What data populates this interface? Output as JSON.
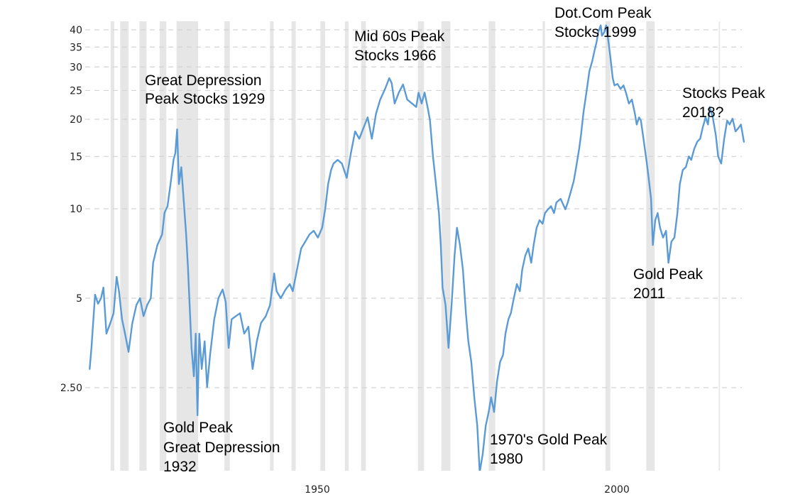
{
  "chart_data": {
    "type": "line",
    "title": "",
    "xlabel": "",
    "ylabel": "",
    "y_scale": "log",
    "ylim": [
      1.3,
      44
    ],
    "xlim": [
      1911,
      2024
    ],
    "grid": "horizontal-dashed",
    "line_color": "#5b9bd5",
    "band_color": "#e6e6e6",
    "y_ticks": [
      {
        "value": 40,
        "label": "40"
      },
      {
        "value": 35,
        "label": "35"
      },
      {
        "value": 30,
        "label": "30"
      },
      {
        "value": 25,
        "label": "25"
      },
      {
        "value": 20,
        "label": "20"
      },
      {
        "value": 15,
        "label": "15"
      },
      {
        "value": 10,
        "label": "10"
      },
      {
        "value": 5,
        "label": "5"
      },
      {
        "value": 2.5,
        "label": "2.50"
      }
    ],
    "x_ticks": [
      {
        "value": 1950,
        "label": "1950"
      },
      {
        "value": 2000,
        "label": "2000"
      }
    ],
    "recession_bands": [
      [
        1915.5,
        1916.1
      ],
      [
        1917.1,
        1918.5
      ],
      [
        1920.3,
        1921.5
      ],
      [
        1923.7,
        1924.8
      ],
      [
        1926.5,
        1930.1
      ],
      [
        1934.5,
        1935.4
      ],
      [
        1942.1,
        1942.7
      ],
      [
        1945.7,
        1946.4
      ],
      [
        1950.5,
        1951.3
      ],
      [
        1954.6,
        1955.2
      ],
      [
        1957.3,
        1958.1
      ],
      [
        1966.8,
        1967.8
      ],
      [
        1970.7,
        1972.2
      ],
      [
        1978.6,
        1979.7
      ],
      [
        1987.6,
        1988.0
      ],
      [
        1998.1,
        1998.9
      ],
      [
        2004.9,
        2006.3
      ],
      [
        2017.0,
        2017.2
      ]
    ],
    "series": [
      {
        "name": "Ratio",
        "x": [
          1912.0,
          1912.3,
          1912.7,
          1912.9,
          1913.4,
          1913.9,
          1914.3,
          1914.8,
          1915.4,
          1916.0,
          1916.5,
          1916.9,
          1917.4,
          1917.9,
          1918.5,
          1919.1,
          1919.8,
          1920.4,
          1921.0,
          1921.6,
          1922.2,
          1922.6,
          1923.3,
          1924.1,
          1924.5,
          1925.0,
          1925.5,
          1926.0,
          1926.3,
          1926.6,
          1926.9,
          1927.3,
          1927.6,
          1928.1,
          1928.4,
          1929.0,
          1929.4,
          1929.7,
          1930.0,
          1930.3,
          1930.7,
          1931.2,
          1931.6,
          1932.1,
          1932.8,
          1933.5,
          1934.2,
          1934.7,
          1935.2,
          1935.7,
          1936.4,
          1937.1,
          1937.8,
          1938.5,
          1939.2,
          1939.9,
          1940.6,
          1941.4,
          1942.1,
          1942.8,
          1943.2,
          1943.9,
          1944.7,
          1945.4,
          1945.9,
          1946.6,
          1947.3,
          1948.0,
          1948.7,
          1949.4,
          1950.1,
          1950.8,
          1951.3,
          1951.8,
          1952.3,
          1952.7,
          1953.4,
          1954.1,
          1954.9,
          1955.6,
          1956.3,
          1957.0,
          1957.7,
          1958.4,
          1959.1,
          1959.8,
          1960.5,
          1961.3,
          1962.0,
          1962.4,
          1962.9,
          1963.6,
          1964.3,
          1965.0,
          1965.8,
          1966.5,
          1966.9,
          1967.4,
          1967.9,
          1968.4,
          1968.8,
          1969.3,
          1969.8,
          1970.3,
          1970.6,
          1970.9,
          1971.4,
          1971.9,
          1972.4,
          1972.9,
          1973.3,
          1973.8,
          1974.3,
          1974.8,
          1975.2,
          1975.7,
          1976.2,
          1976.7,
          1977.1,
          1977.6,
          1978.1,
          1978.6,
          1979.0,
          1979.5,
          1980.0,
          1980.5,
          1981.0,
          1981.4,
          1981.9,
          1982.3,
          1982.8,
          1983.3,
          1983.8,
          1984.2,
          1984.7,
          1985.2,
          1985.7,
          1986.1,
          1986.6,
          1987.1,
          1987.6,
          1988.0,
          1988.5,
          1989.0,
          1989.5,
          1989.9,
          1990.6,
          1991.4,
          1991.8,
          1992.3,
          1992.8,
          1993.2,
          1993.7,
          1994.0,
          1994.4,
          1994.9,
          1995.4,
          1995.9,
          1996.3,
          1996.6,
          1996.9,
          1997.3,
          1997.5,
          1997.9,
          1998.2,
          1998.6,
          1998.9,
          1999.3,
          1999.6,
          2000.1,
          2000.6,
          2001.1,
          2001.5,
          2002.0,
          2002.5,
          2003.0,
          2003.3,
          2003.7,
          2004.0,
          2004.5,
          2005.0,
          2005.3,
          2005.7,
          2006.0,
          2006.4,
          2006.8,
          2007.2,
          2007.7,
          2008.2,
          2008.6,
          2009.1,
          2009.6,
          2010.1,
          2010.5,
          2011.0,
          2011.5,
          2012.0,
          2012.4,
          2012.9,
          2013.4,
          2013.9,
          2014.3,
          2014.8,
          2015.2,
          2015.5,
          2016.0,
          2016.5,
          2016.9,
          2017.4,
          2017.9,
          2018.4,
          2018.8,
          2019.3,
          2019.8,
          2020.3,
          2020.7,
          2021.2
        ],
        "values": [
          2.89,
          3.4,
          4.48,
          5.14,
          4.79,
          5.0,
          5.43,
          3.8,
          4.1,
          4.45,
          5.9,
          5.28,
          4.25,
          3.8,
          3.3,
          4.1,
          4.74,
          5.0,
          4.35,
          4.74,
          5.0,
          6.58,
          7.55,
          8.2,
          9.7,
          10.2,
          12.1,
          14.6,
          15.4,
          18.5,
          12.1,
          13.8,
          11.4,
          8.2,
          6.4,
          3.4,
          2.73,
          3.8,
          2.02,
          3.8,
          2.89,
          3.58,
          2.51,
          3.22,
          4.25,
          5.0,
          5.35,
          4.86,
          3.4,
          4.25,
          4.35,
          4.45,
          3.8,
          4.01,
          2.89,
          3.58,
          4.13,
          4.35,
          4.74,
          6.06,
          5.28,
          5.0,
          5.35,
          5.58,
          5.28,
          6.23,
          7.35,
          7.76,
          8.2,
          8.43,
          8.0,
          8.63,
          9.95,
          12.1,
          13.5,
          14.2,
          14.6,
          14.2,
          12.7,
          15.4,
          18.2,
          17.2,
          18.7,
          20.3,
          17.2,
          20.9,
          23.3,
          25.3,
          27.5,
          26.5,
          22.6,
          24.6,
          26.2,
          23.3,
          22.6,
          22.0,
          24.6,
          22.6,
          24.6,
          22.0,
          19.8,
          15.0,
          12.1,
          9.67,
          7.55,
          5.43,
          4.74,
          3.4,
          4.74,
          6.95,
          8.63,
          7.55,
          6.23,
          4.45,
          3.58,
          3.05,
          2.32,
          1.86,
          1.3,
          1.49,
          1.86,
          2.07,
          2.32,
          2.07,
          2.63,
          3.05,
          3.22,
          3.8,
          4.25,
          4.45,
          5.0,
          5.58,
          5.28,
          6.23,
          6.95,
          7.35,
          6.58,
          7.55,
          8.63,
          9.15,
          8.9,
          9.67,
          9.95,
          10.2,
          9.67,
          10.5,
          10.8,
          9.95,
          10.5,
          11.4,
          12.4,
          13.8,
          15.9,
          17.7,
          20.9,
          24.6,
          29.0,
          31.5,
          34.3,
          36.3,
          39.3,
          41.4,
          38.2,
          39.3,
          41.4,
          36.3,
          32.5,
          27.5,
          26.0,
          26.3,
          25.3,
          26.0,
          24.6,
          22.6,
          23.3,
          20.9,
          19.2,
          20.3,
          19.8,
          16.8,
          14.2,
          12.7,
          10.8,
          7.55,
          9.15,
          9.67,
          8.63,
          8.0,
          8.43,
          6.58,
          7.76,
          8.0,
          9.67,
          12.1,
          13.5,
          13.8,
          15.0,
          14.6,
          15.9,
          16.8,
          17.2,
          18.7,
          20.3,
          19.2,
          22.0,
          20.3,
          17.7,
          15.0,
          14.2,
          17.2,
          19.8,
          19.2,
          20.1,
          18.2,
          18.7,
          19.2,
          16.8
        ]
      }
    ],
    "annotations": [
      {
        "lines": [
          "Great Depression",
          "Peak Stocks 1929"
        ]
      },
      {
        "lines": [
          "Gold Peak",
          "Great Depression",
          "1932"
        ]
      },
      {
        "lines": [
          "Mid 60s Peak",
          "Stocks 1966"
        ]
      },
      {
        "lines": [
          "1970's Gold Peak",
          "1980"
        ]
      },
      {
        "lines": [
          "Dot.Com Peak",
          "Stocks 1999"
        ]
      },
      {
        "lines": [
          "Gold Peak",
          "2011"
        ]
      },
      {
        "lines": [
          "Stocks Peak",
          "2018?"
        ]
      }
    ]
  }
}
